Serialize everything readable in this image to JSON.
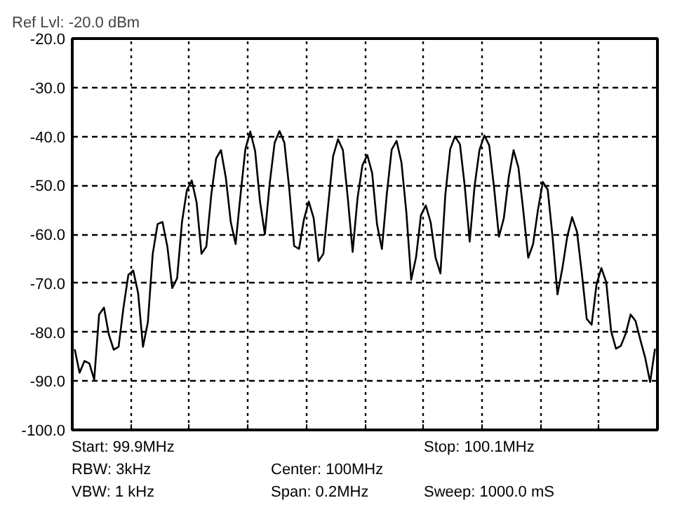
{
  "chart_data": {
    "type": "line",
    "title": "Ref Lvl: -20.0 dBm",
    "categories": [
      null,
      null,
      null,
      null,
      null,
      null,
      null,
      null,
      null,
      null,
      null,
      null,
      null,
      null,
      null,
      null,
      null,
      null,
      null,
      null,
      null,
      null,
      null,
      null,
      null,
      null,
      null,
      null,
      null,
      null,
      null,
      null,
      null,
      null,
      null,
      null,
      null,
      null,
      null,
      null,
      null,
      null,
      null,
      null,
      null,
      null,
      null,
      null,
      null,
      null,
      null,
      null,
      null,
      null,
      null,
      null,
      null,
      null,
      null,
      null,
      null,
      null,
      null,
      null,
      null,
      null,
      null,
      null,
      null,
      null,
      null,
      null,
      null,
      null,
      null,
      null,
      null,
      null,
      null,
      null,
      null,
      null,
      null,
      null,
      null,
      null,
      null,
      null,
      null,
      null,
      null,
      null,
      null,
      null,
      null,
      null,
      null,
      null,
      null,
      null,
      null,
      null,
      null,
      null,
      null,
      null,
      null,
      null,
      null,
      null,
      null,
      null,
      null,
      null,
      null,
      null,
      null,
      null,
      null,
      null
    ],
    "series": [
      {
        "color": "#000000",
        "values": [
          -83.5,
          -88.3,
          -85.9,
          -86.4,
          -89.7,
          -76.4,
          -75.0,
          -80.5,
          -83.6,
          -83.0,
          -75.0,
          -68.3,
          -67.4,
          -72.0,
          -83.0,
          -78.0,
          -64.0,
          -57.9,
          -57.5,
          -62.5,
          -71.0,
          -69.0,
          -57.5,
          -51.0,
          -49.0,
          -53.5,
          -64.0,
          -62.5,
          -52.0,
          -44.5,
          -42.8,
          -48.5,
          -57.5,
          -62.0,
          -52.0,
          -42.6,
          -39.0,
          -43.0,
          -53.3,
          -60.0,
          -49.5,
          -41.3,
          -38.9,
          -41.3,
          -50.7,
          -62.4,
          -63.0,
          -57.0,
          -53.3,
          -56.7,
          -65.5,
          -64.0,
          -53.8,
          -44.0,
          -40.6,
          -42.8,
          -52.6,
          -63.6,
          -52.6,
          -45.9,
          -43.8,
          -47.5,
          -58.0,
          -63.0,
          -51.8,
          -42.7,
          -40.9,
          -45.3,
          -55.4,
          -69.3,
          -64.7,
          -56.1,
          -54.1,
          -57.6,
          -64.8,
          -68.0,
          -52.0,
          -42.6,
          -40.0,
          -41.6,
          -50.3,
          -61.5,
          -50.2,
          -42.8,
          -39.8,
          -41.8,
          -50.5,
          -60.5,
          -56.7,
          -48.4,
          -42.8,
          -46.4,
          -55.3,
          -64.8,
          -62.0,
          -55.0,
          -49.3,
          -50.9,
          -60.6,
          -72.3,
          -67.0,
          -60.5,
          -56.5,
          -59.5,
          -68.0,
          -77.3,
          -78.5,
          -70.3,
          -66.9,
          -69.8,
          -79.8,
          -83.4,
          -82.8,
          -80.3,
          -76.4,
          -77.7,
          -81.6,
          -85.3,
          -90.2,
          -83.4
        ]
      }
    ],
    "ylim": [
      -100,
      -20
    ],
    "yticks": [
      {
        "value": -100,
        "label": "-100.0"
      },
      {
        "value": -90,
        "label": "-90.0"
      },
      {
        "value": -80,
        "label": "-80.0"
      },
      {
        "value": -70,
        "label": "-70.0"
      },
      {
        "value": -60,
        "label": "-60.0"
      },
      {
        "value": -50,
        "label": "-50.0"
      },
      {
        "value": -40,
        "label": "-40.0"
      },
      {
        "value": -30,
        "label": "-30.0"
      },
      {
        "value": -20,
        "label": "-20.0"
      }
    ],
    "tick_labels": "y",
    "grid": true,
    "marker": "none",
    "line_style": "solid",
    "annotations": [
      "Start: 99.9MHz",
      "Stop: 100.1MHz",
      "RBW: 3kHz",
      "Center: 100MHz",
      "VBW: 1 kHz",
      "Span: 0.2MHz",
      "Sweep: 1000.0 mS"
    ]
  }
}
